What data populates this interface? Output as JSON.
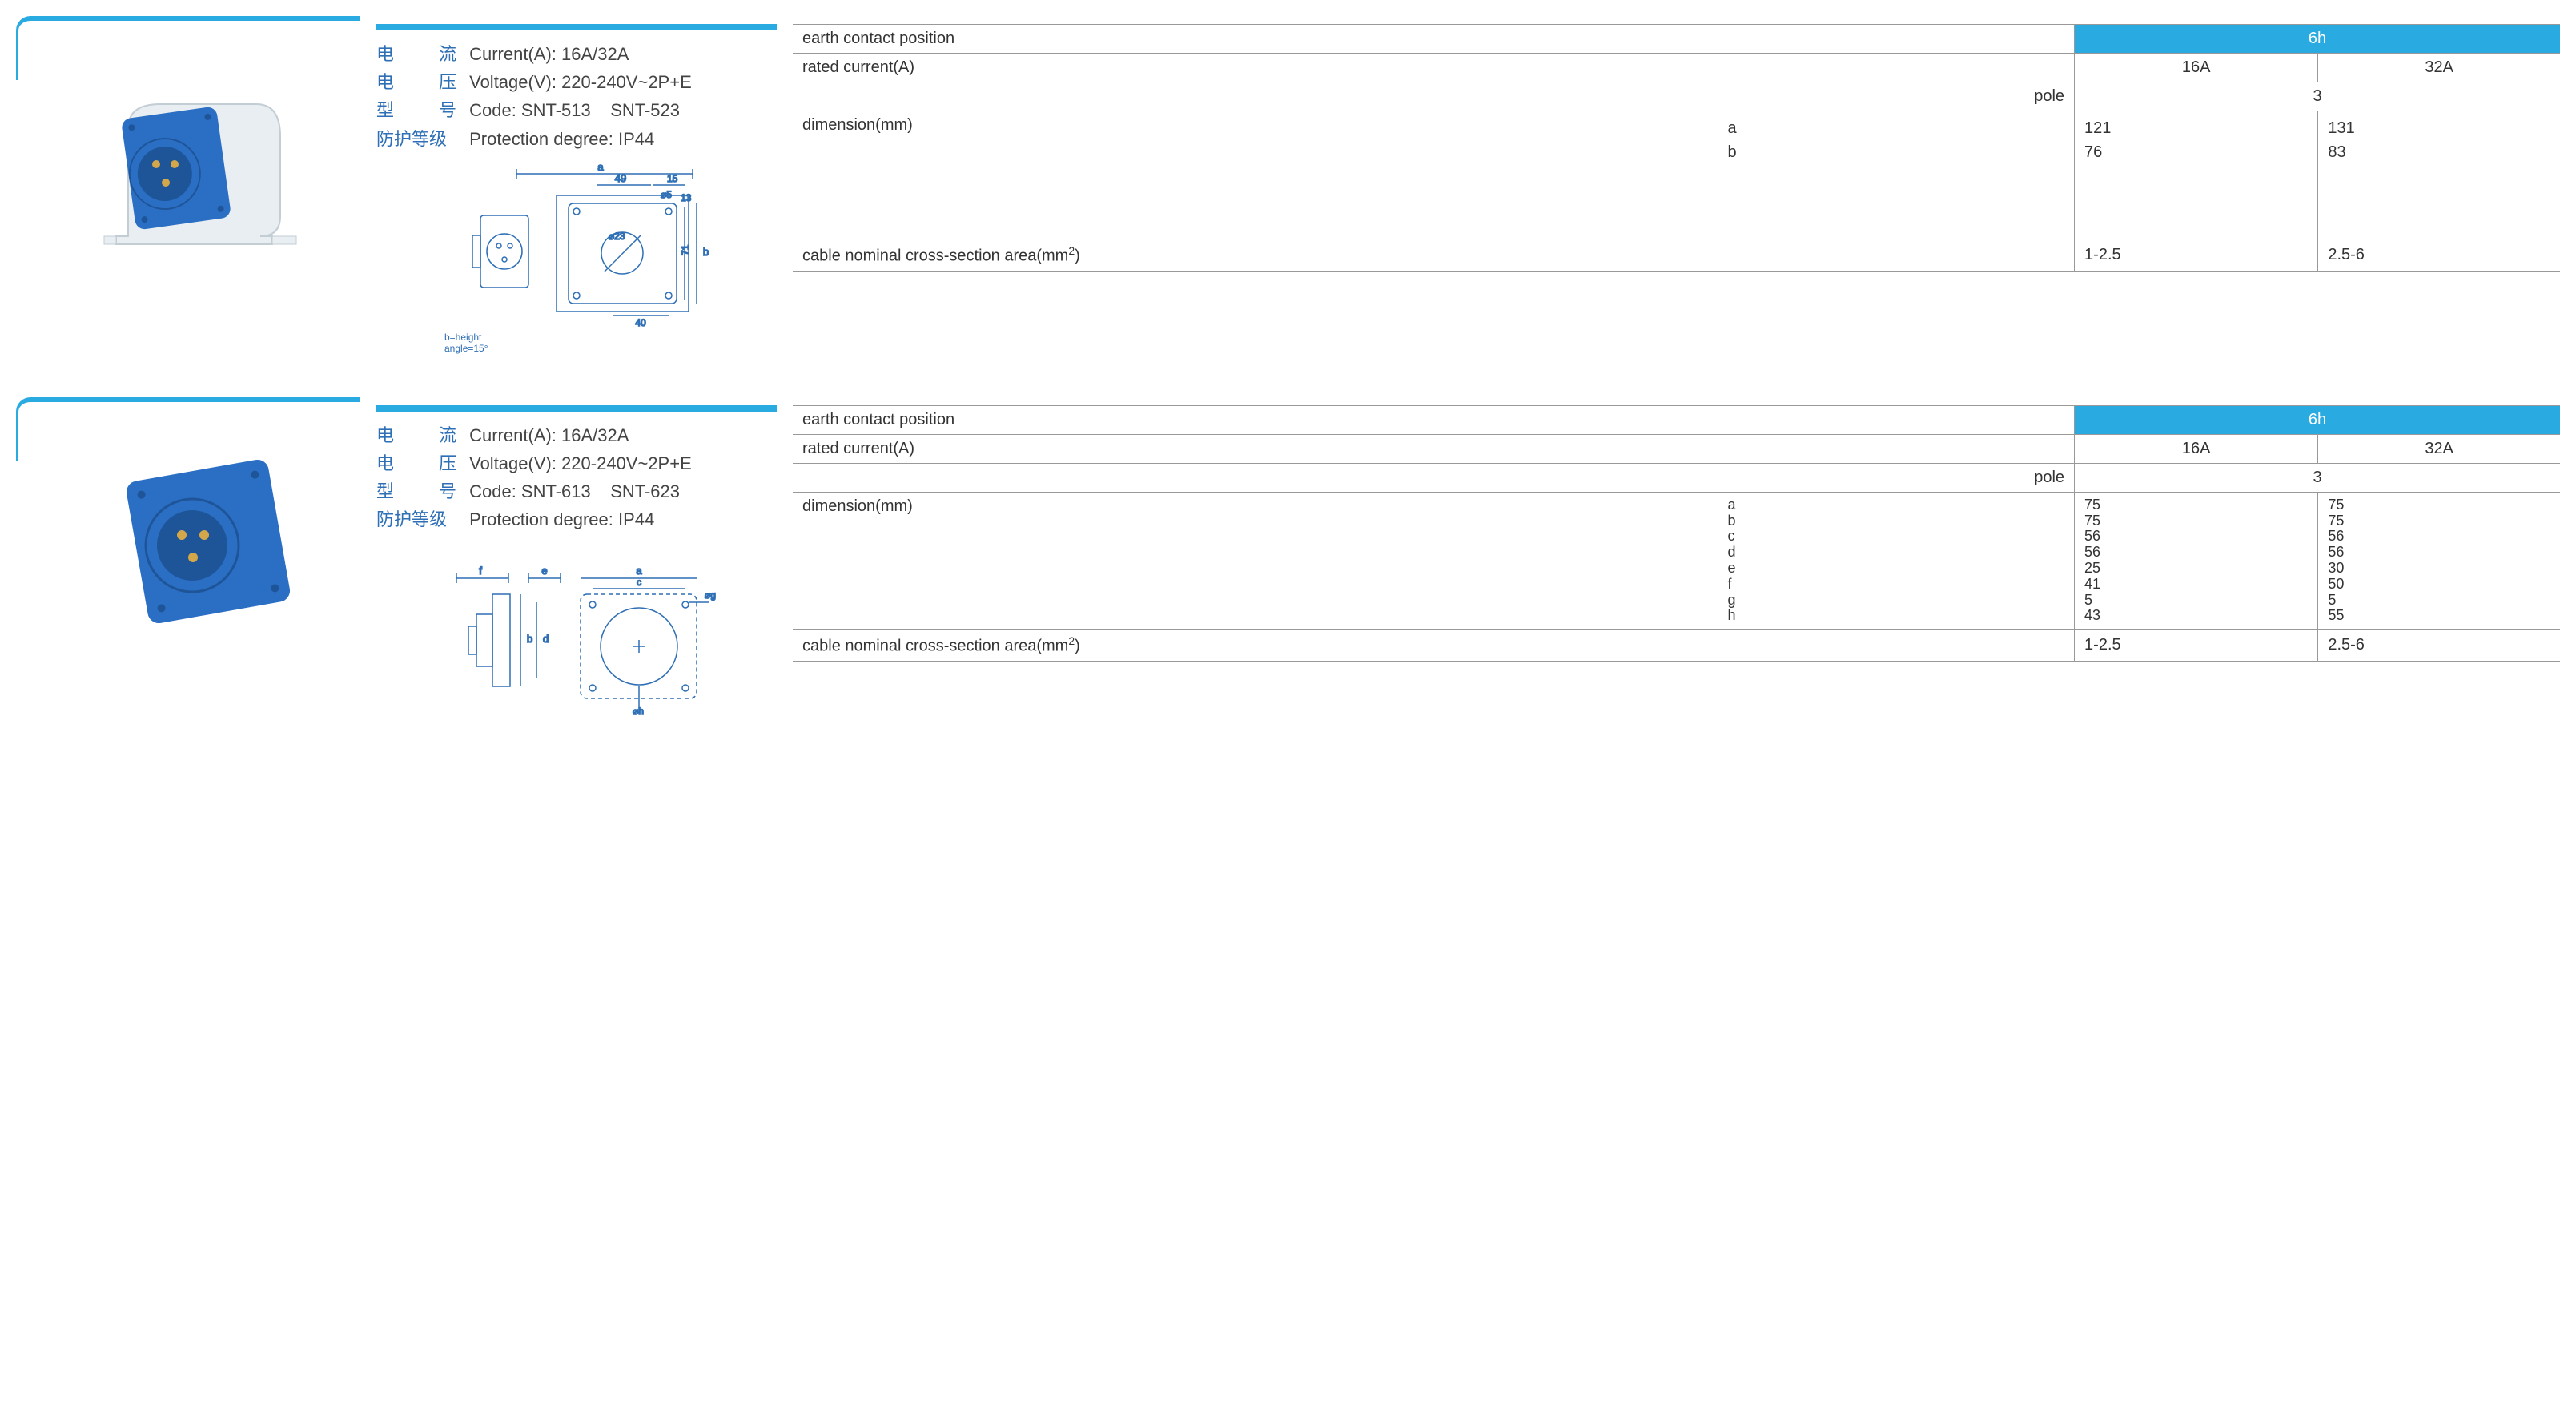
{
  "colors": {
    "accent_blue": "#29abe2",
    "line_blue": "#2e87c8",
    "text_blue": "#2e6fb5",
    "border_gray": "#999999",
    "plug_blue": "#2b6fc4",
    "plug_body": "#e8eef2"
  },
  "labels": {
    "current_cn": "电　　流",
    "current_en": "Current(A):",
    "voltage_cn": "电　　压",
    "voltage_en": "Voltage(V):",
    "code_cn": "型　　号",
    "code_en": "Code:",
    "protection_cn": "防护等级",
    "protection_en": "Protection degree:",
    "earth_contact": "earth contact position",
    "rated_current": "rated current(A)",
    "pole": "pole",
    "dimension": "dimension(mm)",
    "cable_section": "cable nominal cross-section area(mm²)",
    "diagram_note": "b=height\nangle=15°"
  },
  "products": [
    {
      "image_type": "wall-mount",
      "current": "16A/32A",
      "voltage": "220-240V~2P+E",
      "codes": "SNT-513    SNT-523",
      "protection": "IP44",
      "diagram_type": "wall",
      "table": {
        "earth_position": "6h",
        "rated_16": "16A",
        "rated_32": "32A",
        "pole": "3",
        "dim_keys": [
          "a",
          "b"
        ],
        "dim_16": [
          "121",
          "76"
        ],
        "dim_32": [
          "131",
          "83"
        ],
        "cable_16": "1-2.5",
        "cable_32": "2.5-6"
      }
    },
    {
      "image_type": "panel-mount",
      "current": "16A/32A",
      "voltage": "220-240V~2P+E",
      "codes": "SNT-613    SNT-623",
      "protection": "IP44",
      "diagram_type": "panel",
      "table": {
        "earth_position": "6h",
        "rated_16": "16A",
        "rated_32": "32A",
        "pole": "3",
        "dim_keys": [
          "a",
          "b",
          "c",
          "d",
          "e",
          "f",
          "g",
          "h"
        ],
        "dim_16": [
          "75",
          "75",
          "56",
          "56",
          "25",
          "41",
          "5",
          "43"
        ],
        "dim_32": [
          "75",
          "75",
          "56",
          "56",
          "30",
          "50",
          "5",
          "55"
        ],
        "cable_16": "1-2.5",
        "cable_32": "2.5-6"
      }
    }
  ]
}
